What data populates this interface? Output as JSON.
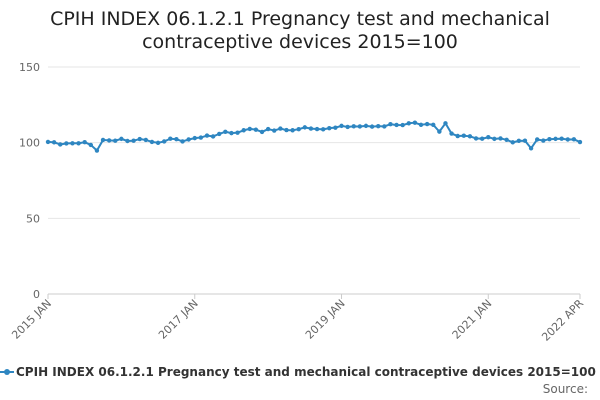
{
  "chart_data": {
    "type": "line",
    "title": "CPIH INDEX 06.1.2.1 Pregnancy test and mechanical contraceptive devices 2015=100",
    "xlabel": "",
    "ylabel": "",
    "ylim": [
      0,
      150
    ],
    "y_ticks": [
      0,
      50,
      100,
      150
    ],
    "x_ticks": [
      "2015 JAN",
      "2017 JAN",
      "2019 JAN",
      "2021 JAN",
      "2022 APR"
    ],
    "grid": true,
    "legend_position": "bottom",
    "series": [
      {
        "name": "CPIH INDEX 06.1.2.1 Pregnancy test and mechanical contraceptive devices 2015=100",
        "color": "#2e86c1",
        "values": [
          100.5,
          100.2,
          98.8,
          99.5,
          99.6,
          99.6,
          100.3,
          98.5,
          94.8,
          101.8,
          101.5,
          101.3,
          102.5,
          101.1,
          101.3,
          102.4,
          101.8,
          100.5,
          99.9,
          100.8,
          102.6,
          102.3,
          100.8,
          102.1,
          103.0,
          103.4,
          104.7,
          104.1,
          105.8,
          107.2,
          106.3,
          106.6,
          108.2,
          109.1,
          108.6,
          107.1,
          109.0,
          108.0,
          109.3,
          108.3,
          108.2,
          108.9,
          110.1,
          109.3,
          109.0,
          108.8,
          109.6,
          109.9,
          111.1,
          110.4,
          110.8,
          110.7,
          111.1,
          110.6,
          110.9,
          110.7,
          112.2,
          111.7,
          111.6,
          112.8,
          113.2,
          111.8,
          112.3,
          111.8,
          107.3,
          112.8,
          106.0,
          104.4,
          104.6,
          104.2,
          102.8,
          102.6,
          103.6,
          102.5,
          102.8,
          101.9,
          100.2,
          101.2,
          101.3,
          96.3,
          102.1,
          101.4,
          102.3,
          102.5,
          102.6,
          102.1,
          102.2,
          100.4
        ]
      }
    ]
  },
  "source_label": "Source:"
}
